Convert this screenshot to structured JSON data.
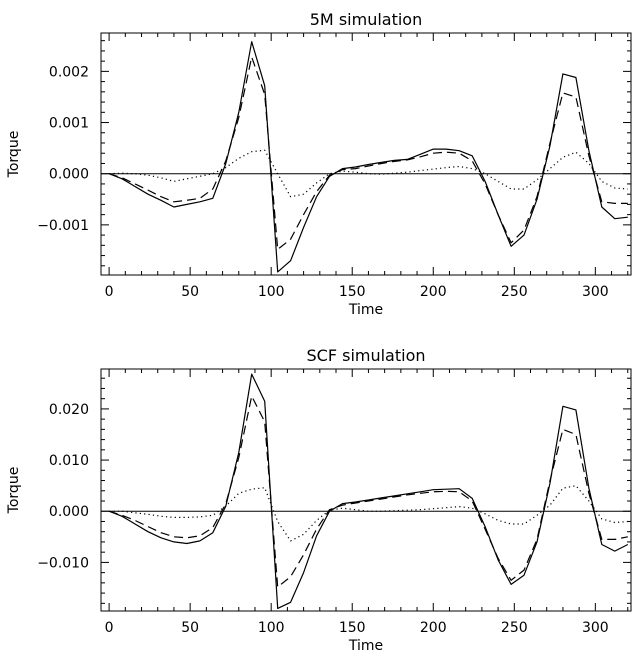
{
  "chart_data": [
    {
      "type": "line",
      "title": "5M simulation",
      "xlabel": "Time",
      "ylabel": "Torque",
      "xlim": [
        -5,
        322
      ],
      "ylim": [
        -0.00198,
        0.00275
      ],
      "x_ticks": [
        0,
        50,
        100,
        150,
        200,
        250,
        300
      ],
      "x_tick_labels": [
        "0",
        "50",
        "100",
        "150",
        "200",
        "250",
        "300"
      ],
      "y_ticks": [
        -0.001,
        0.0,
        0.001,
        0.002
      ],
      "y_tick_labels": [
        "−0.001",
        "0.000",
        "0.001",
        "0.002"
      ],
      "zero_line": true,
      "grid": false,
      "series": [
        {
          "style": "solid",
          "x": [
            0,
            8,
            16,
            24,
            32,
            40,
            48,
            56,
            64,
            72,
            80,
            88,
            96,
            104,
            112,
            120,
            128,
            136,
            144,
            152,
            160,
            168,
            176,
            184,
            192,
            200,
            208,
            216,
            224,
            232,
            240,
            248,
            256,
            264,
            272,
            280,
            288,
            296,
            304,
            312,
            320
          ],
          "values": [
            0.0,
            -0.0001,
            -0.00025,
            -0.0004,
            -0.00052,
            -0.00065,
            -0.0006,
            -0.00055,
            -0.00048,
            0.0002,
            0.0012,
            0.00258,
            0.00172,
            -0.00192,
            -0.0017,
            -0.00105,
            -0.00045,
            -5e-05,
            0.0001,
            0.00013,
            0.00018,
            0.00022,
            0.00026,
            0.00028,
            0.00038,
            0.00048,
            0.00048,
            0.00045,
            0.00035,
            -0.00015,
            -0.0008,
            -0.00142,
            -0.0012,
            -0.0005,
            0.00055,
            0.00195,
            0.00188,
            0.00045,
            -0.00065,
            -0.00088,
            -0.00085
          ]
        },
        {
          "style": "dashed",
          "x": [
            0,
            8,
            16,
            24,
            32,
            40,
            48,
            56,
            64,
            72,
            80,
            88,
            96,
            104,
            112,
            120,
            128,
            136,
            144,
            152,
            160,
            168,
            176,
            184,
            192,
            200,
            208,
            216,
            224,
            232,
            240,
            248,
            256,
            264,
            272,
            280,
            288,
            296,
            304,
            312,
            320
          ],
          "values": [
            0.0,
            -8e-05,
            -0.0002,
            -0.00032,
            -0.00045,
            -0.00055,
            -0.00052,
            -0.00048,
            -0.0003,
            0.00025,
            0.0011,
            0.00228,
            0.00155,
            -0.00148,
            -0.00128,
            -0.0008,
            -0.00035,
            -3e-05,
            8e-05,
            0.0001,
            0.00015,
            0.0002,
            0.00024,
            0.00027,
            0.00033,
            0.0004,
            0.00042,
            0.0004,
            0.00025,
            -0.0002,
            -0.0008,
            -0.00135,
            -0.0011,
            -0.00045,
            0.0006,
            0.00158,
            0.0015,
            0.00035,
            -0.00055,
            -0.00058,
            -0.00058
          ]
        },
        {
          "style": "dotted",
          "x": [
            0,
            8,
            16,
            24,
            32,
            40,
            48,
            56,
            64,
            72,
            80,
            88,
            96,
            104,
            112,
            120,
            128,
            136,
            144,
            152,
            160,
            168,
            176,
            184,
            192,
            200,
            208,
            216,
            224,
            232,
            240,
            248,
            256,
            264,
            272,
            280,
            288,
            296,
            304,
            312,
            320
          ],
          "values": [
            0.0,
            1e-05,
            0.0,
            -3e-05,
            -8e-05,
            -0.00015,
            -0.0001,
            -5e-05,
            0.0,
            0.00012,
            0.0003,
            0.00043,
            0.00046,
            0.0,
            -0.00045,
            -0.0004,
            -0.00018,
            0.0,
            5e-05,
            3e-05,
            0.0,
            -1e-05,
            1e-05,
            3e-05,
            6e-05,
            9e-05,
            0.00012,
            0.00014,
            0.0001,
            0.0,
            -0.00015,
            -0.0003,
            -0.0003,
            -0.00012,
            0.0001,
            0.00032,
            0.00042,
            0.0002,
            -0.00015,
            -0.00028,
            -0.0003
          ]
        }
      ]
    },
    {
      "type": "line",
      "title": "SCF simulation",
      "xlabel": "Time",
      "ylabel": "Torque",
      "xlim": [
        -5,
        322
      ],
      "ylim": [
        -0.0195,
        0.0278
      ],
      "x_ticks": [
        0,
        50,
        100,
        150,
        200,
        250,
        300
      ],
      "x_tick_labels": [
        "0",
        "50",
        "100",
        "150",
        "200",
        "250",
        "300"
      ],
      "y_ticks": [
        -0.01,
        0.0,
        0.01,
        0.02
      ],
      "y_tick_labels": [
        "−0.010",
        "0.000",
        "0.010",
        "0.020"
      ],
      "zero_line": true,
      "grid": false,
      "series": [
        {
          "style": "solid",
          "x": [
            0,
            8,
            16,
            24,
            32,
            40,
            48,
            56,
            64,
            72,
            80,
            88,
            96,
            104,
            112,
            120,
            128,
            136,
            144,
            152,
            160,
            168,
            176,
            184,
            192,
            200,
            208,
            216,
            224,
            232,
            240,
            248,
            256,
            264,
            272,
            280,
            288,
            296,
            304,
            312,
            320
          ],
          "values": [
            0.0,
            -0.001,
            -0.0025,
            -0.004,
            -0.0052,
            -0.006,
            -0.0063,
            -0.0058,
            -0.0042,
            0.001,
            0.0115,
            0.0268,
            0.0215,
            -0.019,
            -0.0178,
            -0.012,
            -0.0048,
            0.0,
            0.0015,
            0.0018,
            0.0022,
            0.0026,
            0.003,
            0.0034,
            0.0038,
            0.0042,
            0.0043,
            0.0044,
            0.0025,
            -0.003,
            -0.0095,
            -0.0143,
            -0.0125,
            -0.006,
            0.0055,
            0.0205,
            0.0198,
            0.0045,
            -0.0065,
            -0.0078,
            -0.0065
          ]
        },
        {
          "style": "dashed",
          "x": [
            0,
            8,
            16,
            24,
            32,
            40,
            48,
            56,
            64,
            72,
            80,
            88,
            96,
            104,
            112,
            120,
            128,
            136,
            144,
            152,
            160,
            168,
            176,
            184,
            192,
            200,
            208,
            216,
            224,
            232,
            240,
            248,
            256,
            264,
            272,
            280,
            288,
            296,
            304,
            312,
            320
          ],
          "values": [
            0.0,
            -0.0008,
            -0.0018,
            -0.003,
            -0.0042,
            -0.005,
            -0.0052,
            -0.0048,
            -0.0032,
            0.0015,
            0.0105,
            0.0225,
            0.0175,
            -0.0148,
            -0.0128,
            -0.0085,
            -0.0035,
            0.0003,
            0.0012,
            0.0016,
            0.002,
            0.0024,
            0.0028,
            0.0032,
            0.0035,
            0.0038,
            0.0039,
            0.0038,
            0.002,
            -0.0035,
            -0.0092,
            -0.0135,
            -0.0115,
            -0.0055,
            0.006,
            0.016,
            0.015,
            0.0035,
            -0.0055,
            -0.0055,
            -0.005
          ]
        },
        {
          "style": "dotted",
          "x": [
            0,
            8,
            16,
            24,
            32,
            40,
            48,
            56,
            64,
            72,
            80,
            88,
            96,
            104,
            112,
            120,
            128,
            136,
            144,
            152,
            160,
            168,
            176,
            184,
            192,
            200,
            208,
            216,
            224,
            232,
            240,
            248,
            256,
            264,
            272,
            280,
            288,
            296,
            304,
            312,
            320
          ],
          "values": [
            0.0,
            0.0,
            -0.0003,
            -0.0006,
            -0.001,
            -0.0012,
            -0.0012,
            -0.0011,
            -0.0008,
            0.001,
            0.0035,
            0.0043,
            0.0046,
            -0.002,
            -0.0058,
            -0.0045,
            -0.0018,
            0.0002,
            0.0006,
            0.0003,
            0.0,
            0.0,
            0.0001,
            0.0002,
            0.0003,
            0.0005,
            0.0007,
            0.0009,
            0.0006,
            -0.0005,
            -0.0018,
            -0.0025,
            -0.0025,
            -0.0008,
            0.0012,
            0.0045,
            0.005,
            0.002,
            -0.0015,
            -0.0022,
            -0.002
          ]
        }
      ]
    }
  ]
}
